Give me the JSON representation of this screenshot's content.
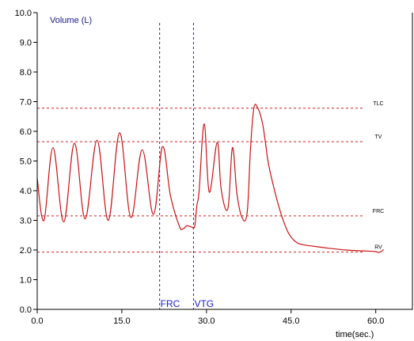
{
  "chart_data": {
    "type": "line",
    "title": "Volume (L)",
    "xlabel": "time(sec.)",
    "ylabel": "",
    "xlim": [
      0,
      66.5
    ],
    "ylim": [
      0,
      10
    ],
    "x_ticks": [
      0,
      15,
      30,
      45,
      60
    ],
    "x_tick_labels": [
      "0.0",
      "15.0",
      "30.0",
      "45.0",
      "60.0"
    ],
    "y_ticks": [
      0,
      1,
      2,
      3,
      4,
      5,
      6,
      7,
      8,
      9,
      10
    ],
    "y_tick_labels": [
      "0.0",
      "1.0",
      "2.0",
      "3.0",
      "4.0",
      "5.0",
      "6.0",
      "7.0",
      "8.0",
      "9.0",
      "10.0"
    ],
    "reference_lines": [
      {
        "label": "TLC",
        "y": 6.78
      },
      {
        "label": "TV",
        "y": 5.65
      },
      {
        "label": "FRC",
        "y": 3.15
      },
      {
        "label": "RV",
        "y": 1.93
      }
    ],
    "markers": [
      {
        "label": "FRC",
        "x": 21.7
      },
      {
        "label": "VTG",
        "x": 27.7
      }
    ],
    "series": [
      {
        "color": "#c81414",
        "x": [
          0,
          1.2,
          2.8,
          4.7,
          6.6,
          8.5,
          10.6,
          12.6,
          14.6,
          16.6,
          18.6,
          20.6,
          22.2,
          23.6,
          25.2,
          25.9,
          26.5,
          27.3,
          27.9,
          28.3,
          28.7,
          29.6,
          30.5,
          31.9,
          32.6,
          33.8,
          34.6,
          35.4,
          36.3,
          37.2,
          37.8,
          38.4,
          39.1,
          39.9,
          40.5,
          40.9,
          41.5,
          42.7,
          43.7,
          44.6,
          45.8,
          47.1,
          49.3,
          51.7,
          54.7,
          57.8,
          59.8,
          60.5,
          61.0,
          61.4
        ],
        "y": [
          4.42,
          3.0,
          5.45,
          2.95,
          5.6,
          3.05,
          5.7,
          3.0,
          5.95,
          3.1,
          5.38,
          3.2,
          5.48,
          3.85,
          2.8,
          2.72,
          2.82,
          2.78,
          2.8,
          3.5,
          4.0,
          6.25,
          3.95,
          5.63,
          4.05,
          3.4,
          5.45,
          3.9,
          3.1,
          3.25,
          5.4,
          6.78,
          6.78,
          6.3,
          5.55,
          5.0,
          4.45,
          3.55,
          2.95,
          2.55,
          2.28,
          2.18,
          2.12,
          2.06,
          2.0,
          1.97,
          1.95,
          1.92,
          1.95,
          2.02
        ]
      }
    ]
  }
}
